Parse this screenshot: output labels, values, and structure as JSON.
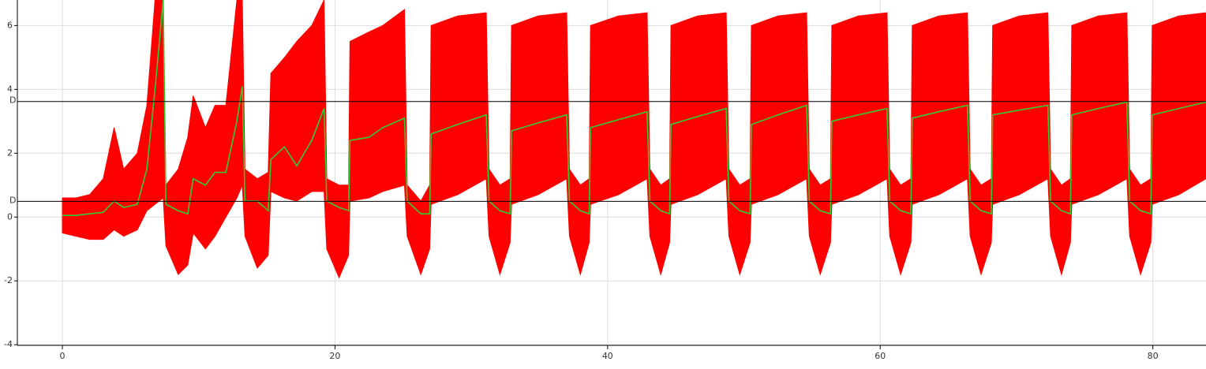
{
  "chart_data": {
    "type": "line",
    "x": [
      0,
      1,
      2,
      3,
      3.8,
      4.5,
      5.5,
      6.2,
      6.8,
      7.4,
      7.6,
      8.5,
      9.2,
      9.6,
      10.5,
      11.2,
      12,
      12.8,
      13.2,
      13.4,
      14.3,
      15.1,
      15.3,
      16.3,
      17.2,
      18.3,
      19.2,
      19.4,
      20.3,
      21.0,
      21.1,
      22.5,
      23.5,
      25.1,
      25.3,
      26.3,
      26.95,
      27.05,
      29.0,
      31.1,
      31.3,
      32.1,
      32.85,
      32.95,
      34.9,
      37.0,
      37.2,
      38.0,
      38.65,
      38.75,
      40.8,
      42.9,
      43.1,
      43.9,
      44.55,
      44.65,
      46.6,
      48.7,
      48.9,
      49.7,
      50.45,
      50.55,
      52.5,
      54.6,
      54.8,
      55.6,
      56.35,
      56.45,
      58.4,
      60.5,
      60.7,
      61.5,
      62.25,
      62.35,
      64.3,
      66.4,
      66.6,
      67.4,
      68.15,
      68.25,
      70.2,
      72.3,
      72.5,
      73.3,
      73.95,
      74.05,
      76.0,
      78.1,
      78.3,
      79.1,
      79.85,
      79.95,
      81.9,
      83.9
    ],
    "band": {
      "color": "#ff0000",
      "upper": [
        0.6,
        0.6,
        0.7,
        1.2,
        2.8,
        1.5,
        2.0,
        3.5,
        6.8,
        6.8,
        1.0,
        1.5,
        2.5,
        3.8,
        2.8,
        3.5,
        3.5,
        6.8,
        6.8,
        1.5,
        1.2,
        1.4,
        4.5,
        5.0,
        5.5,
        6.0,
        6.8,
        1.2,
        1.0,
        1.0,
        5.5,
        5.8,
        6.0,
        6.5,
        1.0,
        0.5,
        1.0,
        6.0,
        6.3,
        6.4,
        1.5,
        1.0,
        1.2,
        6.0,
        6.3,
        6.4,
        1.5,
        1.0,
        1.2,
        6.0,
        6.3,
        6.4,
        1.5,
        1.0,
        1.2,
        6.0,
        6.3,
        6.4,
        1.5,
        1.0,
        1.2,
        6.0,
        6.3,
        6.4,
        1.5,
        1.0,
        1.2,
        6.0,
        6.3,
        6.4,
        1.5,
        1.0,
        1.2,
        6.0,
        6.3,
        6.4,
        1.5,
        1.0,
        1.2,
        6.0,
        6.3,
        6.4,
        1.5,
        1.0,
        1.2,
        6.0,
        6.3,
        6.4,
        1.5,
        1.0,
        1.2,
        6.0,
        6.3,
        6.4
      ],
      "lower": [
        -0.5,
        -0.6,
        -0.7,
        -0.7,
        -0.4,
        -0.6,
        -0.4,
        0.2,
        0.4,
        0.6,
        -0.9,
        -1.8,
        -1.5,
        -0.5,
        -1.0,
        -0.6,
        0.0,
        0.6,
        1.0,
        -0.6,
        -1.6,
        -1.2,
        0.8,
        0.6,
        0.5,
        0.8,
        0.8,
        -1.0,
        -1.9,
        -1.2,
        0.5,
        0.6,
        0.8,
        1.0,
        -0.6,
        -1.8,
        -1.0,
        0.4,
        0.7,
        1.2,
        -0.6,
        -1.8,
        -0.8,
        0.4,
        0.7,
        1.2,
        -0.6,
        -1.8,
        -0.8,
        0.4,
        0.7,
        1.2,
        -0.6,
        -1.8,
        -0.8,
        0.4,
        0.7,
        1.2,
        -0.6,
        -1.8,
        -0.8,
        0.4,
        0.7,
        1.2,
        -0.6,
        -1.8,
        -0.8,
        0.4,
        0.7,
        1.2,
        -0.6,
        -1.8,
        -0.8,
        0.4,
        0.7,
        1.2,
        -0.6,
        -1.8,
        -0.8,
        0.4,
        0.7,
        1.2,
        -0.6,
        -1.8,
        -0.8,
        0.4,
        0.7,
        1.2,
        -0.6,
        -1.8,
        -0.8,
        0.4,
        0.7,
        1.2
      ]
    },
    "series": [
      {
        "color": "#33cc33",
        "values": [
          0.05,
          0.05,
          0.1,
          0.15,
          0.5,
          0.3,
          0.4,
          1.5,
          4.0,
          6.8,
          0.4,
          0.2,
          0.1,
          1.2,
          1.0,
          1.4,
          1.4,
          3.0,
          4.1,
          0.5,
          0.5,
          0.2,
          1.8,
          2.2,
          1.6,
          2.4,
          3.4,
          0.5,
          0.3,
          0.2,
          2.4,
          2.5,
          2.8,
          3.1,
          0.5,
          0.1,
          0.1,
          2.6,
          2.9,
          3.2,
          0.5,
          0.2,
          0.1,
          2.7,
          2.95,
          3.2,
          0.5,
          0.2,
          0.1,
          2.8,
          3.05,
          3.3,
          0.5,
          0.2,
          0.1,
          2.9,
          3.15,
          3.4,
          0.5,
          0.2,
          0.1,
          2.9,
          3.2,
          3.5,
          0.5,
          0.2,
          0.1,
          3.0,
          3.2,
          3.4,
          0.5,
          0.2,
          0.1,
          3.1,
          3.3,
          3.5,
          0.5,
          0.2,
          0.1,
          3.2,
          3.35,
          3.5,
          0.5,
          0.2,
          0.1,
          3.2,
          3.4,
          3.6,
          0.5,
          0.2,
          0.1,
          3.2,
          3.4,
          3.6
        ]
      }
    ],
    "reference_lines": [
      {
        "value": 3.62,
        "label": "D"
      },
      {
        "value": 0.49,
        "label": "D"
      }
    ],
    "xlim": [
      -3.3,
      83.9
    ],
    "ylim": [
      -4.02,
      6.8
    ],
    "xticks": [
      0,
      20,
      40,
      60,
      80
    ],
    "yticks": [
      -4,
      -2,
      0,
      2,
      4,
      6
    ],
    "grid": true
  }
}
